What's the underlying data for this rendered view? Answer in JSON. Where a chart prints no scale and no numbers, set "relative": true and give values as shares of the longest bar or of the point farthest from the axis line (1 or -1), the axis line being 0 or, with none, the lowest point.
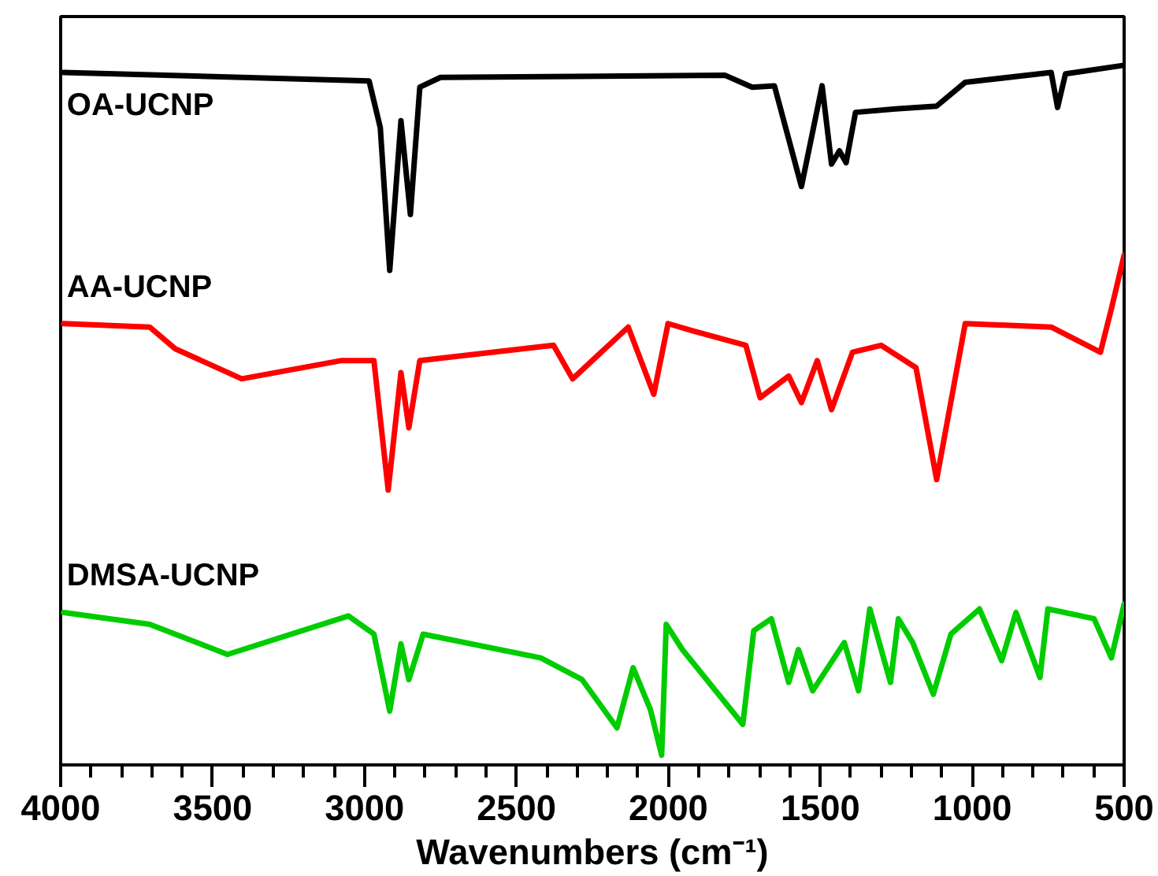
{
  "chart_data": {
    "type": "line",
    "relative": true,
    "xlabel": "Wavenumbers (cm⁻¹)",
    "legend": false,
    "grid": false,
    "marker": "none",
    "line_style": "solid",
    "xlim": [
      4000,
      500
    ],
    "xticks": [
      4000,
      {
        "value": 3900,
        "label": null
      },
      {
        "value": 3800,
        "label": null
      },
      {
        "value": 3700,
        "label": null
      },
      {
        "value": 3600,
        "label": null
      },
      3500,
      {
        "value": 3400,
        "label": null
      },
      {
        "value": 3300,
        "label": null
      },
      {
        "value": 3200,
        "label": null
      },
      {
        "value": 3100,
        "label": null
      },
      3000,
      {
        "value": 2900,
        "label": null
      },
      {
        "value": 2800,
        "label": null
      },
      {
        "value": 2700,
        "label": null
      },
      {
        "value": 2600,
        "label": null
      },
      2500,
      {
        "value": 2400,
        "label": null
      },
      {
        "value": 2300,
        "label": null
      },
      {
        "value": 2200,
        "label": null
      },
      {
        "value": 2100,
        "label": null
      },
      2000,
      {
        "value": 1900,
        "label": null
      },
      {
        "value": 1800,
        "label": null
      },
      {
        "value": 1700,
        "label": null
      },
      {
        "value": 1600,
        "label": null
      },
      1500,
      {
        "value": 1400,
        "label": null
      },
      {
        "value": 1300,
        "label": null
      },
      {
        "value": 1200,
        "label": null
      },
      {
        "value": 1100,
        "label": null
      },
      1000,
      {
        "value": 900,
        "label": null
      },
      {
        "value": 800,
        "label": null
      },
      {
        "value": 700,
        "label": null
      },
      {
        "value": 600,
        "label": null
      },
      500
    ],
    "series": [
      {
        "name": "OA-UCNP",
        "color": "#000000",
        "x": [
          3990,
          2985,
          2948,
          2917,
          2880,
          2849,
          2818,
          2750,
          1813,
          1724,
          1651,
          1562,
          1494,
          1463,
          1437,
          1415,
          1384,
          1253,
          1117,
          1023,
          740,
          719,
          693,
          505
        ],
        "values": [
          0.99,
          0.978,
          0.911,
          0.707,
          0.921,
          0.787,
          0.969,
          0.983,
          0.986,
          0.969,
          0.971,
          0.827,
          0.971,
          0.859,
          0.878,
          0.861,
          0.933,
          0.938,
          0.942,
          0.976,
          0.99,
          0.94,
          0.988,
          1.0
        ]
      },
      {
        "name": "AA-UCNP",
        "color": "#ff0000",
        "x": [
          3990,
          3707,
          3623,
          3404,
          3079,
          2969,
          2922,
          2880,
          2854,
          2818,
          2378,
          2315,
          2132,
          2048,
          2001,
          1923,
          1745,
          1698,
          1604,
          1562,
          1510,
          1463,
          1394,
          1300,
          1185,
          1117,
          1023,
          740,
          578,
          542,
          500
        ],
        "values": [
          0.631,
          0.626,
          0.595,
          0.552,
          0.578,
          0.578,
          0.393,
          0.561,
          0.482,
          0.578,
          0.6,
          0.552,
          0.626,
          0.53,
          0.631,
          0.621,
          0.6,
          0.525,
          0.556,
          0.518,
          0.578,
          0.508,
          0.59,
          0.6,
          0.568,
          0.408,
          0.631,
          0.626,
          0.59,
          0.652,
          0.729
        ]
      },
      {
        "name": "DMSA-UCNP",
        "color": "#00cc00",
        "x": [
          3990,
          3707,
          3451,
          3053,
          2969,
          2917,
          2880,
          2854,
          2807,
          2420,
          2284,
          2169,
          2116,
          2059,
          2022,
          2007,
          1954,
          1755,
          1719,
          1661,
          1604,
          1572,
          1525,
          1421,
          1374,
          1337,
          1269,
          1243,
          1196,
          1128,
          1070,
          976,
          903,
          856,
          777,
          751,
          599,
          542,
          500
        ],
        "values": [
          0.218,
          0.201,
          0.158,
          0.213,
          0.187,
          0.077,
          0.173,
          0.122,
          0.187,
          0.153,
          0.122,
          0.053,
          0.139,
          0.079,
          0.014,
          0.201,
          0.165,
          0.058,
          0.192,
          0.209,
          0.118,
          0.165,
          0.106,
          0.175,
          0.106,
          0.223,
          0.118,
          0.209,
          0.175,
          0.101,
          0.187,
          0.223,
          0.149,
          0.218,
          0.125,
          0.223,
          0.209,
          0.153,
          0.23
        ]
      }
    ]
  }
}
